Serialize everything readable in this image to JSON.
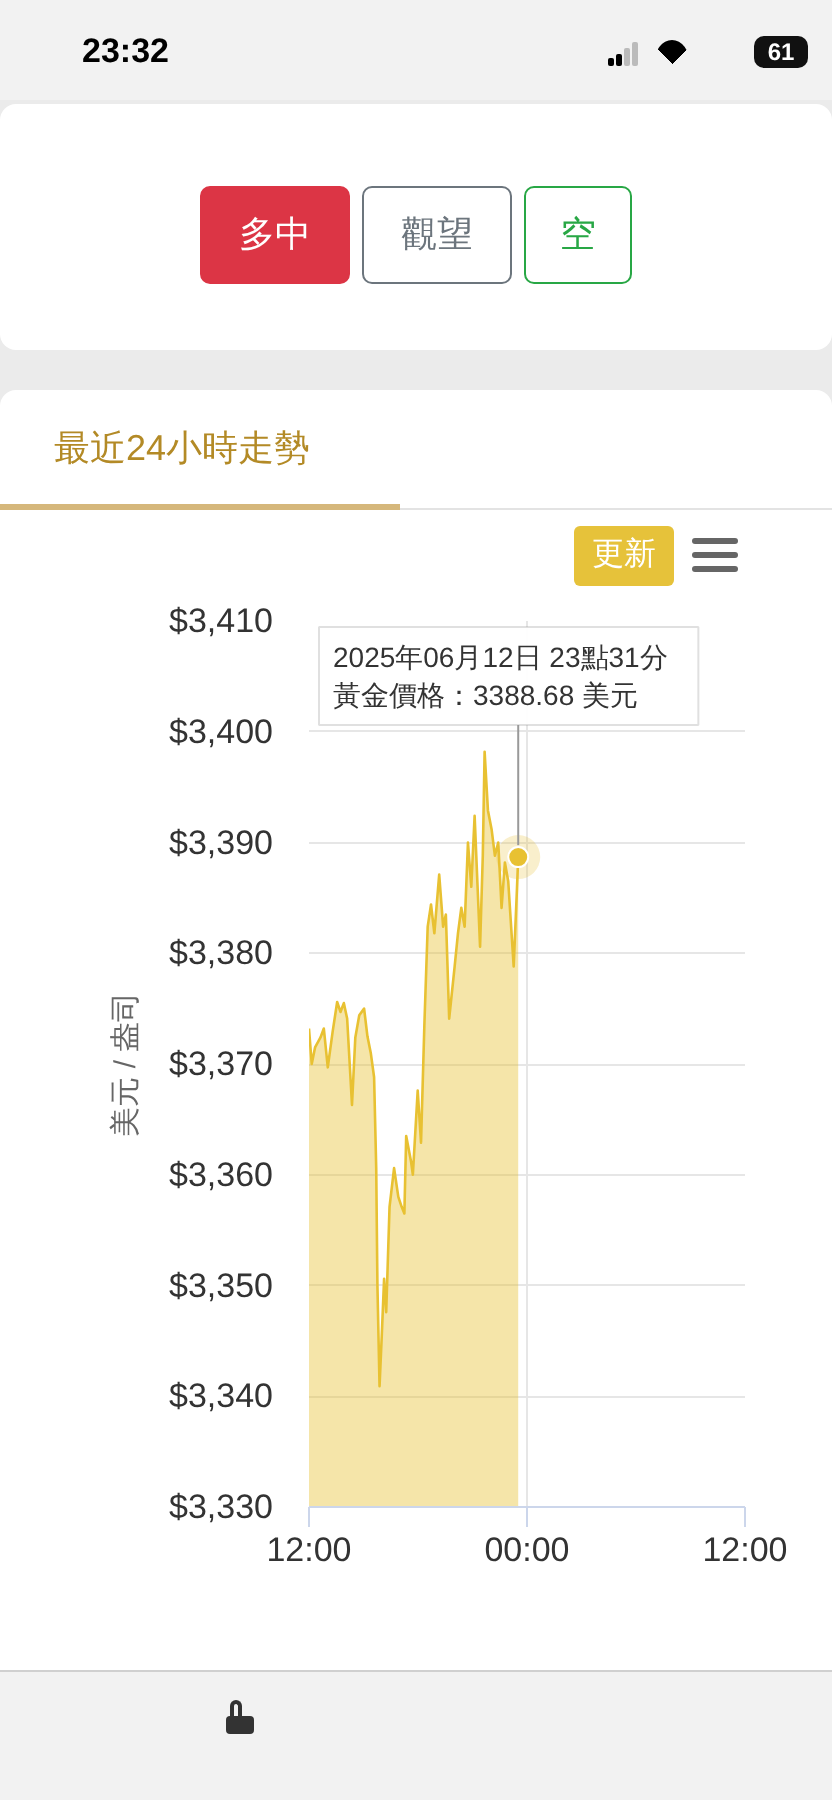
{
  "chart_data": {
    "type": "area",
    "title": "最近24小時走勢",
    "ylabel": "美元 / 盎司",
    "x": [
      "2025-06-12T12:00",
      "2025-06-12T12:09",
      "2025-06-12T12:20",
      "2025-06-12T12:38",
      "2025-06-12T12:49",
      "2025-06-12T13:02",
      "2025-06-12T13:18",
      "2025-06-12T13:33",
      "2025-06-12T13:44",
      "2025-06-12T13:55",
      "2025-06-12T14:06",
      "2025-06-12T14:22",
      "2025-06-12T14:33",
      "2025-06-12T14:46",
      "2025-06-12T15:02",
      "2025-06-12T15:13",
      "2025-06-12T15:24",
      "2025-06-12T15:35",
      "2025-06-12T15:42",
      "2025-06-12T15:46",
      "2025-06-12T15:53",
      "2025-06-12T16:01",
      "2025-06-12T16:08",
      "2025-06-12T16:15",
      "2025-06-12T16:26",
      "2025-06-12T16:41",
      "2025-06-12T16:55",
      "2025-06-12T17:06",
      "2025-06-12T17:15",
      "2025-06-12T17:21",
      "2025-06-12T17:37",
      "2025-06-12T17:43",
      "2025-06-12T17:59",
      "2025-06-12T18:10",
      "2025-06-12T18:21",
      "2025-06-12T18:32",
      "2025-06-12T18:43",
      "2025-06-12T18:54",
      "2025-06-12T19:10",
      "2025-06-12T19:23",
      "2025-06-12T19:32",
      "2025-06-12T19:43",
      "2025-06-12T20:01",
      "2025-06-12T20:12",
      "2025-06-12T20:23",
      "2025-06-12T20:34",
      "2025-06-12T20:45",
      "2025-06-12T20:56",
      "2025-06-12T21:07",
      "2025-06-12T21:25",
      "2025-06-12T21:34",
      "2025-06-12T21:40",
      "2025-06-12T21:51",
      "2025-06-12T22:03",
      "2025-06-12T22:14",
      "2025-06-12T22:25",
      "2025-06-12T22:36",
      "2025-06-12T22:47",
      "2025-06-12T22:58",
      "2025-06-12T23:16",
      "2025-06-12T23:27",
      "2025-06-12T23:31"
    ],
    "series": [
      {
        "color": "#e8c132",
        "values": [
          3373.2,
          3370.0,
          3371.5,
          3372.4,
          3373.2,
          3369.7,
          3372.9,
          3375.6,
          3374.7,
          3375.5,
          3374.1,
          3366.3,
          3372.4,
          3374.4,
          3375.0,
          3372.5,
          3371.0,
          3368.8,
          3360.6,
          3350.0,
          3340.9,
          3345.9,
          3350.6,
          3347.6,
          3357.1,
          3360.6,
          3358.0,
          3357.1,
          3356.5,
          3363.5,
          3361.2,
          3360.0,
          3367.6,
          3362.9,
          3373.5,
          3382.4,
          3384.4,
          3381.8,
          3387.1,
          3382.4,
          3383.5,
          3374.1,
          3378.8,
          3381.8,
          3384.1,
          3382.4,
          3390.0,
          3386.0,
          3392.4,
          3380.6,
          3388.8,
          3398.2,
          3392.9,
          3391.2,
          3388.8,
          3390.0,
          3384.1,
          3388.2,
          3386.5,
          3378.8,
          3385.9,
          3388.68
        ]
      }
    ],
    "xlim": [
      "2025-06-12T12:00",
      "2025-06-13T12:00"
    ],
    "xticks": [
      {
        "value": "2025-06-12T12:00",
        "label": "12:00"
      },
      {
        "value": "2025-06-13T00:00",
        "label": "00:00"
      },
      {
        "value": "2025-06-13T12:00",
        "label": "12:00"
      }
    ],
    "ylim": [
      3330,
      3410
    ],
    "yticks": [
      {
        "value": 3330,
        "label": "$3,330"
      },
      {
        "value": 3340,
        "label": "$3,340"
      },
      {
        "value": 3350,
        "label": "$3,350"
      },
      {
        "value": 3360,
        "label": "$3,360"
      },
      {
        "value": 3370,
        "label": "$3,370"
      },
      {
        "value": 3380,
        "label": "$3,380"
      },
      {
        "value": 3390,
        "label": "$3,390"
      },
      {
        "value": 3400,
        "label": "$3,400"
      },
      {
        "value": 3410,
        "label": "$3,410"
      }
    ],
    "grid": true,
    "annotations": [
      "23:32",
      "61",
      "多中",
      "觀望",
      "空",
      "更新",
      "2025年06月12日 23點31分",
      {
        "text": "黃金價格：3388.68 美元",
        "x": "2025-06-12T23:31",
        "y": 3388.68
      }
    ]
  }
}
